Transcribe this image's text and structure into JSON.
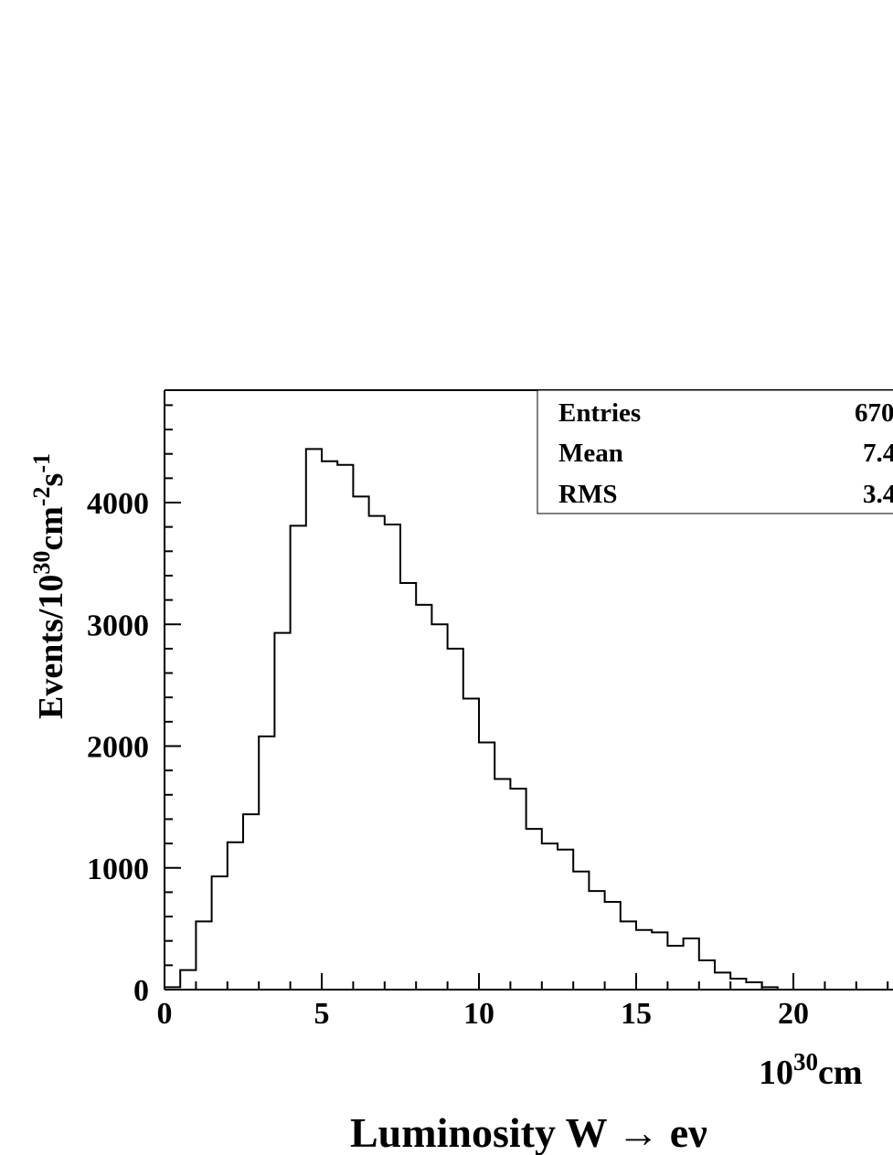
{
  "chart_data": {
    "type": "bar",
    "title": "Luminosity W → eν",
    "ylabel": "Events/10^30cm^-2s^-1",
    "ylabel_parts": {
      "pre": "Events/10",
      "exp1": "30",
      "mid": "cm",
      "exp2": "-2",
      "mid2": "s",
      "exp3": "-1"
    },
    "xlabel_parts": {
      "base": "10",
      "exp": "30",
      "unit": "cm"
    },
    "xlim": [
      0,
      23
    ],
    "ylim": [
      0,
      4900
    ],
    "xticks": [
      0,
      5,
      10,
      15,
      20
    ],
    "xtick_labels": [
      "0",
      "5",
      "10",
      "15",
      "20"
    ],
    "yticks": [
      0,
      1000,
      2000,
      3000,
      4000
    ],
    "ytick_labels": [
      "0",
      "1000",
      "2000",
      "3000",
      "4000"
    ],
    "bin_width": 0.5,
    "bin_edges_start": 0,
    "values": [
      20,
      160,
      560,
      930,
      1210,
      1440,
      2080,
      2930,
      3810,
      4440,
      4340,
      4310,
      4050,
      3890,
      3820,
      3340,
      3160,
      3000,
      2800,
      2390,
      2030,
      1730,
      1650,
      1320,
      1200,
      1150,
      970,
      810,
      720,
      560,
      490,
      470,
      360,
      420,
      240,
      140,
      90,
      60,
      20,
      0
    ],
    "stats": [
      {
        "label": "Entries",
        "value": "670"
      },
      {
        "label": "Mean",
        "value": "7.4"
      },
      {
        "label": "RMS",
        "value": "3.4"
      }
    ]
  }
}
